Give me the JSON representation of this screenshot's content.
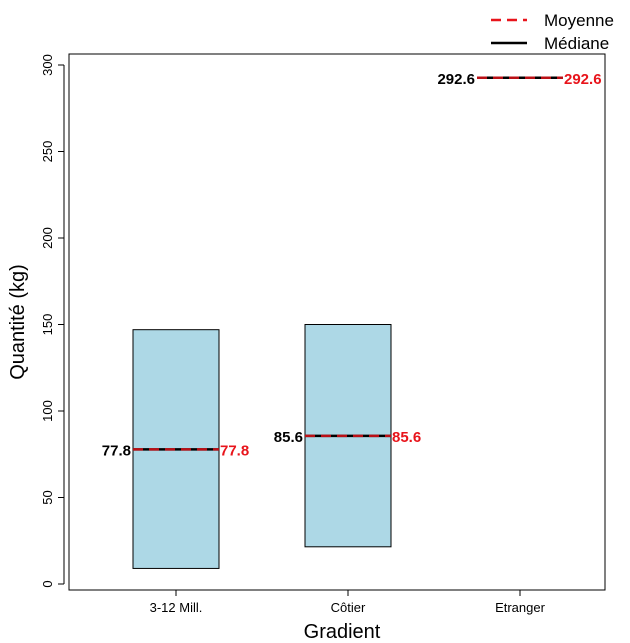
{
  "chart_data": {
    "type": "box",
    "xlabel": "Gradient",
    "ylabel": "Quantité (kg)",
    "ylim": [
      0,
      300
    ],
    "yticks": [
      0,
      50,
      100,
      150,
      200,
      250,
      300
    ],
    "categories": [
      "3-12 Mill.",
      "Côtier",
      "Etranger"
    ],
    "boxes": [
      {
        "category": "3-12 Mill.",
        "lower": 9,
        "upper": 147,
        "median": 77.8,
        "mean": 77.8,
        "median_label": "77.8",
        "mean_label": "77.8"
      },
      {
        "category": "Côtier",
        "lower": 21.5,
        "upper": 150,
        "median": 85.6,
        "mean": 85.6,
        "median_label": "85.6",
        "mean_label": "85.6"
      },
      {
        "category": "Etranger",
        "lower": 292.6,
        "upper": 292.6,
        "median": 292.6,
        "mean": 292.6,
        "median_label": "292.6",
        "mean_label": "292.6"
      }
    ],
    "legend": [
      {
        "label": "Moyenne",
        "style": "dashed",
        "color": "#e8141b"
      },
      {
        "label": "Médiane",
        "style": "solid",
        "color": "#000000"
      }
    ],
    "legend_position": "top-right",
    "grid": false,
    "colors": {
      "box_fill": "#add8e6",
      "mean": "#e8141b",
      "median": "#000000"
    }
  }
}
